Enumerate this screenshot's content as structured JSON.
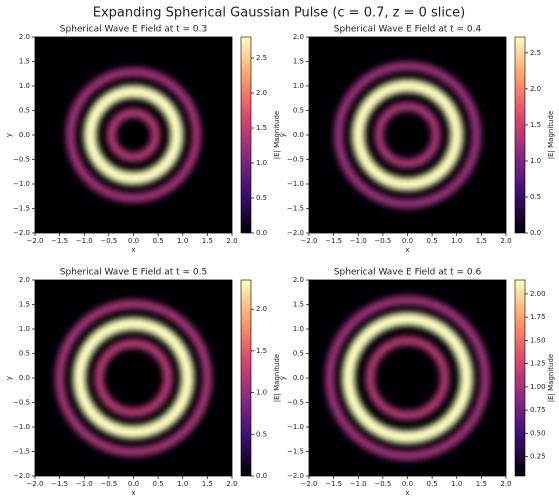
{
  "title": "Expanding Spherical Gaussian Pulse (c = 0.7, z = 0 slice)",
  "chart_data": [
    {
      "type": "heatmap",
      "title": "Spherical Wave E Field at t = 0.3",
      "xlabel": "x",
      "ylabel": "y",
      "colorbar_label": "|E| Magnitude",
      "colormap": [
        "#000004",
        "#3b0f70",
        "#8c2981",
        "#de4968",
        "#fe9f6d",
        "#fcfdbf"
      ],
      "xlim": [
        -2,
        2
      ],
      "ylim": [
        -2,
        2
      ],
      "xticks": [
        {
          "value": -2,
          "label": "−2.0"
        },
        {
          "value": -1.5,
          "label": "−1.5"
        },
        {
          "value": -1,
          "label": "−1.0"
        },
        {
          "value": -0.5,
          "label": "−0.5"
        },
        {
          "value": 0,
          "label": "0.0"
        },
        {
          "value": 0.5,
          "label": "0.5"
        },
        {
          "value": 1,
          "label": "1.0"
        },
        {
          "value": 1.5,
          "label": "1.5"
        },
        {
          "value": 2,
          "label": "2.0"
        }
      ],
      "yticks": [
        {
          "value": -2,
          "label": "−2.0"
        },
        {
          "value": -1.5,
          "label": "−1.5"
        },
        {
          "value": -1,
          "label": "−1.0"
        },
        {
          "value": -0.5,
          "label": "−0.5"
        },
        {
          "value": 0,
          "label": "0.0"
        },
        {
          "value": 0.5,
          "label": "0.5"
        },
        {
          "value": 1,
          "label": "1.0"
        },
        {
          "value": 1.5,
          "label": "1.5"
        },
        {
          "value": 2,
          "label": "2.0"
        }
      ],
      "clim": [
        0,
        2.8
      ],
      "cticks": [
        {
          "value": 0,
          "label": "0.0"
        },
        {
          "value": 0.5,
          "label": "0.5"
        },
        {
          "value": 1,
          "label": "1.0"
        },
        {
          "value": 1.5,
          "label": "1.5"
        },
        {
          "value": 2,
          "label": "2.0"
        },
        {
          "value": 2.5,
          "label": "2.5"
        }
      ],
      "rings": {
        "r": [
          0.45,
          0.88,
          1.28
        ],
        "values": [
          1.4,
          2.8,
          1.3
        ]
      }
    },
    {
      "type": "heatmap",
      "title": "Spherical Wave E Field at t = 0.4",
      "xlabel": "x",
      "ylabel": "y",
      "colorbar_label": "|E| Magnitude",
      "colormap": [
        "#000004",
        "#3b0f70",
        "#8c2981",
        "#de4968",
        "#fe9f6d",
        "#fcfdbf"
      ],
      "xlim": [
        -2,
        2
      ],
      "ylim": [
        -2,
        2
      ],
      "xticks": [
        {
          "value": -2,
          "label": "−2.0"
        },
        {
          "value": -1.5,
          "label": "−1.5"
        },
        {
          "value": -1,
          "label": "−1.0"
        },
        {
          "value": -0.5,
          "label": "−0.5"
        },
        {
          "value": 0,
          "label": "0.0"
        },
        {
          "value": 0.5,
          "label": "0.5"
        },
        {
          "value": 1,
          "label": "1.0"
        },
        {
          "value": 1.5,
          "label": "1.5"
        },
        {
          "value": 2,
          "label": "2.0"
        }
      ],
      "yticks": [
        {
          "value": -2,
          "label": "−2.0"
        },
        {
          "value": -1.5,
          "label": "−1.5"
        },
        {
          "value": -1,
          "label": "−1.0"
        },
        {
          "value": -0.5,
          "label": "−0.5"
        },
        {
          "value": 0,
          "label": "0.0"
        },
        {
          "value": 0.5,
          "label": "0.5"
        },
        {
          "value": 1,
          "label": "1.0"
        },
        {
          "value": 1.5,
          "label": "1.5"
        },
        {
          "value": 2,
          "label": "2.0"
        }
      ],
      "clim": [
        0,
        2.72
      ],
      "cticks": [
        {
          "value": 0,
          "label": "0.0"
        },
        {
          "value": 0.5,
          "label": "0.5"
        },
        {
          "value": 1,
          "label": "1.0"
        },
        {
          "value": 1.5,
          "label": "1.5"
        },
        {
          "value": 2,
          "label": "2.0"
        },
        {
          "value": 2.5,
          "label": "2.5"
        }
      ],
      "rings": {
        "r": [
          0.58,
          1.0,
          1.4
        ],
        "values": [
          1.3,
          2.7,
          1.2
        ]
      }
    },
    {
      "type": "heatmap",
      "title": "Spherical Wave E Field at t = 0.5",
      "xlabel": "x",
      "ylabel": "y",
      "colorbar_label": "|E| Magnitude",
      "colormap": [
        "#000004",
        "#3b0f70",
        "#8c2981",
        "#de4968",
        "#fe9f6d",
        "#fcfdbf"
      ],
      "xlim": [
        -2,
        2
      ],
      "ylim": [
        -2,
        2
      ],
      "xticks": [
        {
          "value": -2,
          "label": "−2.0"
        },
        {
          "value": -1.5,
          "label": "−1.5"
        },
        {
          "value": -1,
          "label": "−1.0"
        },
        {
          "value": -0.5,
          "label": "−0.5"
        },
        {
          "value": 0,
          "label": "0.0"
        },
        {
          "value": 0.5,
          "label": "0.5"
        },
        {
          "value": 1,
          "label": "1.0"
        },
        {
          "value": 1.5,
          "label": "1.5"
        },
        {
          "value": 2,
          "label": "2.0"
        }
      ],
      "yticks": [
        {
          "value": -2,
          "label": "−2.0"
        },
        {
          "value": -1.5,
          "label": "−1.5"
        },
        {
          "value": -1,
          "label": "−1.0"
        },
        {
          "value": -0.5,
          "label": "−0.5"
        },
        {
          "value": 0,
          "label": "0.0"
        },
        {
          "value": 0.5,
          "label": "0.5"
        },
        {
          "value": 1,
          "label": "1.0"
        },
        {
          "value": 1.5,
          "label": "1.5"
        },
        {
          "value": 2,
          "label": "2.0"
        }
      ],
      "clim": [
        0,
        2.35
      ],
      "cticks": [
        {
          "value": 0,
          "label": "0.0"
        },
        {
          "value": 0.5,
          "label": "0.5"
        },
        {
          "value": 1,
          "label": "1.0"
        },
        {
          "value": 1.5,
          "label": "1.5"
        },
        {
          "value": 2,
          "label": "2.0"
        }
      ],
      "rings": {
        "r": [
          0.7,
          1.1,
          1.5
        ],
        "values": [
          1.2,
          2.35,
          1.1
        ]
      }
    },
    {
      "type": "heatmap",
      "title": "Spherical Wave E Field at t = 0.6",
      "xlabel": "x",
      "ylabel": "y",
      "colorbar_label": "|E| Magnitude",
      "colormap": [
        "#000004",
        "#3b0f70",
        "#8c2981",
        "#de4968",
        "#fe9f6d",
        "#fcfdbf"
      ],
      "xlim": [
        -2,
        2
      ],
      "ylim": [
        -2,
        2
      ],
      "xticks": [
        {
          "value": -2,
          "label": "−2.0"
        },
        {
          "value": -1.5,
          "label": "−1.5"
        },
        {
          "value": -1,
          "label": "−1.0"
        },
        {
          "value": -0.5,
          "label": "−0.5"
        },
        {
          "value": 0,
          "label": "0.0"
        },
        {
          "value": 0.5,
          "label": "0.5"
        },
        {
          "value": 1,
          "label": "1.0"
        },
        {
          "value": 1.5,
          "label": "1.5"
        },
        {
          "value": 2,
          "label": "2.0"
        }
      ],
      "yticks": [
        {
          "value": -2,
          "label": "−2.0"
        },
        {
          "value": -1.5,
          "label": "−1.5"
        },
        {
          "value": -1,
          "label": "−1.0"
        },
        {
          "value": -0.5,
          "label": "−0.5"
        },
        {
          "value": 0,
          "label": "0.0"
        },
        {
          "value": 0.5,
          "label": "0.5"
        },
        {
          "value": 1,
          "label": "1.0"
        },
        {
          "value": 1.5,
          "label": "1.5"
        },
        {
          "value": 2,
          "label": "2.0"
        }
      ],
      "clim": [
        0.04,
        2.15
      ],
      "cticks": [
        {
          "value": 0.25,
          "label": "0.25"
        },
        {
          "value": 0.5,
          "label": "0.50"
        },
        {
          "value": 0.75,
          "label": "0.75"
        },
        {
          "value": 1,
          "label": "1.00"
        },
        {
          "value": 1.25,
          "label": "1.25"
        },
        {
          "value": 1.5,
          "label": "1.50"
        },
        {
          "value": 1.75,
          "label": "1.75"
        },
        {
          "value": 2,
          "label": "2.00"
        }
      ],
      "rings": {
        "r": [
          0.76,
          1.2,
          1.58
        ],
        "values": [
          1.1,
          2.15,
          1.0
        ]
      }
    }
  ]
}
